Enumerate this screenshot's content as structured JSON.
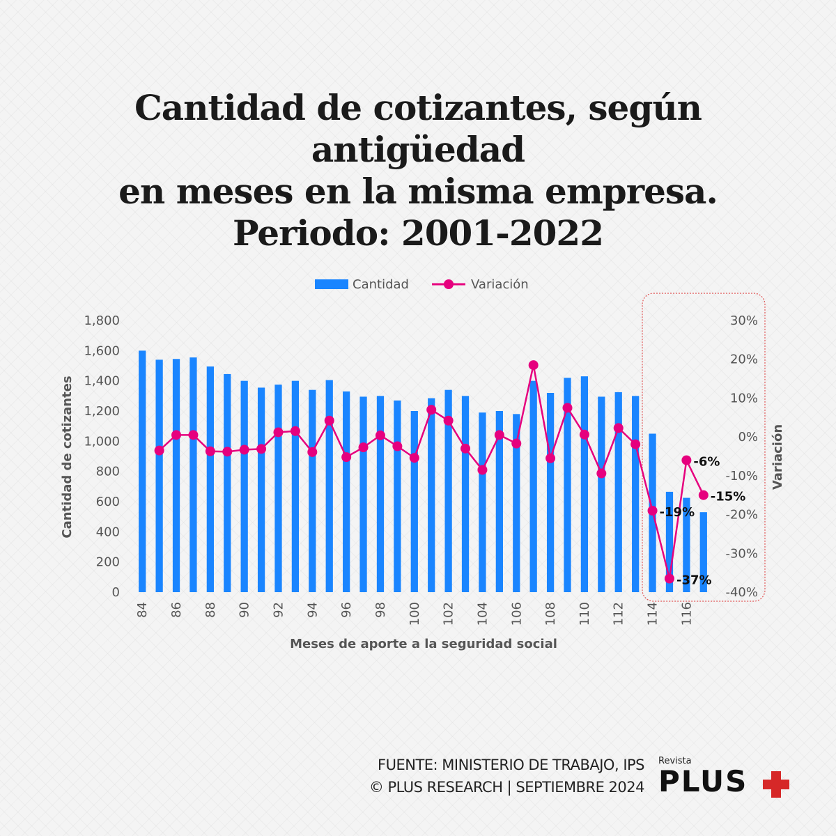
{
  "title": {
    "line1": "Cantidad de cotizantes, según antigüedad",
    "line2": "en meses en la misma empresa.",
    "line3": "Periodo:  2001-2022"
  },
  "footer": {
    "source": "FUENTE: MINISTERIO DE TRABAJO, IPS",
    "credit": "© PLUS RESEARCH | SEPTIEMBRE 2024"
  },
  "brand": {
    "small": "Revista",
    "name": "PLUS",
    "plus_color": "#d62828"
  },
  "colors": {
    "bar": "#1a85ff",
    "line": "#e6007e",
    "highlight_box": "#e05555"
  },
  "chart_data": {
    "type": "bar",
    "legend": {
      "bar": "Cantidad",
      "line": "Variación",
      "position": "top"
    },
    "xlabel": "Meses de aporte a la seguridad social",
    "ylabel": "Cantidad de cotizantes",
    "y2label": "Variación",
    "categories": [
      84,
      85,
      86,
      87,
      88,
      89,
      90,
      91,
      92,
      93,
      94,
      95,
      96,
      97,
      98,
      99,
      100,
      101,
      102,
      103,
      104,
      105,
      106,
      107,
      108,
      109,
      110,
      111,
      112,
      113,
      114,
      115,
      116,
      117
    ],
    "xtick_labels": [
      "84",
      "86",
      "88",
      "90",
      "92",
      "94",
      "96",
      "98",
      "100",
      "102",
      "104",
      "106",
      "108",
      "110",
      "112",
      "114",
      "116"
    ],
    "ylim": [
      0,
      1800
    ],
    "yticks": [
      "0",
      "200",
      "400",
      "600",
      "800",
      "1,000",
      "1,200",
      "1,400",
      "1,600",
      "1,800"
    ],
    "y2lim": [
      -40,
      30
    ],
    "y2ticks": [
      "-40%",
      "-30%",
      "-20%",
      "-10%",
      "0%",
      "10%",
      "20%",
      "30%"
    ],
    "series": [
      {
        "name": "Cantidad",
        "type": "bar",
        "values": [
          1600,
          1540,
          1545,
          1555,
          1495,
          1445,
          1400,
          1355,
          1375,
          1400,
          1340,
          1405,
          1330,
          1295,
          1300,
          1270,
          1200,
          1285,
          1340,
          1300,
          1190,
          1200,
          1180,
          1400,
          1320,
          1420,
          1430,
          1295,
          1325,
          1300,
          1050,
          665,
          625,
          530
        ]
      },
      {
        "name": "Variación",
        "type": "line",
        "values": [
          null,
          -3.5,
          0.5,
          0.5,
          -3.7,
          -3.8,
          -3.3,
          -3.1,
          1.2,
          1.5,
          -3.9,
          4.2,
          -5.2,
          -2.7,
          0.4,
          -2.4,
          -5.4,
          7.0,
          4.2,
          -3.0,
          -8.5,
          0.5,
          -1.7,
          18.5,
          -5.5,
          7.5,
          0.6,
          -9.4,
          2.3,
          -1.9,
          -19.0,
          -36.5,
          -6.0,
          -15.0
        ]
      }
    ],
    "annotations": [
      {
        "category": 114,
        "text": "-19%"
      },
      {
        "category": 115,
        "text": "-37%"
      },
      {
        "category": 116,
        "text": "-6%"
      },
      {
        "category": 117,
        "text": "-15%"
      }
    ]
  }
}
